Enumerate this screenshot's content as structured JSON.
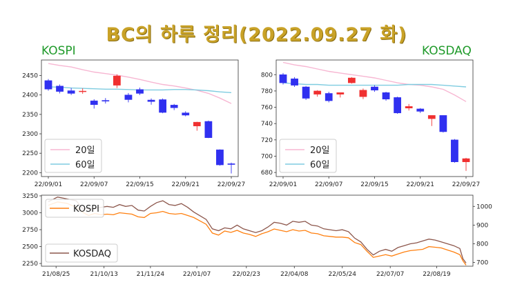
{
  "title": "BC의 하루 정리(2022.09.27 화)",
  "labels": {
    "kospi": "KOSPI",
    "kosdaq": "KOSDAQ"
  },
  "colors": {
    "up": "#f03030",
    "down": "#3030f0",
    "ma20": "#f7b6d2",
    "ma60": "#7ecce0",
    "kospi_line": "#ff7f0e",
    "kosdaq_line": "#8c564b",
    "title": "#c9a227",
    "label": "#1f9a2a"
  },
  "chart_data": [
    {
      "type": "candlestick",
      "name": "KOSPI",
      "ylim": [
        2190,
        2490
      ],
      "yticks": [
        2200,
        2250,
        2300,
        2350,
        2400,
        2450
      ],
      "xtick_labels": [
        "22/09/01",
        "22/09/07",
        "22/09/15",
        "22/09/21",
        "22/09/27"
      ],
      "xtick_index": [
        0,
        4,
        8,
        12,
        16
      ],
      "legend": [
        "20일",
        "60일"
      ],
      "legend_position": "lower-left",
      "candles": [
        [
          2437,
          2441,
          2411,
          2415
        ],
        [
          2423,
          2427,
          2404,
          2409
        ],
        [
          2411,
          2418,
          2400,
          2404
        ],
        [
          2409,
          2417,
          2403,
          2410
        ],
        [
          2385,
          2389,
          2365,
          2375
        ],
        [
          2386,
          2392,
          2378,
          2384
        ],
        [
          2425,
          2453,
          2418,
          2449
        ],
        [
          2400,
          2405,
          2381,
          2388
        ],
        [
          2414,
          2419,
          2400,
          2404
        ],
        [
          2387,
          2391,
          2375,
          2383
        ],
        [
          2388,
          2391,
          2353,
          2355
        ],
        [
          2374,
          2377,
          2361,
          2367
        ],
        [
          2354,
          2358,
          2345,
          2348
        ],
        [
          2320,
          2331,
          2308,
          2330
        ],
        [
          2332,
          2334,
          2289,
          2290
        ],
        [
          2259,
          2260,
          2218,
          2220
        ],
        [
          2223,
          2226,
          2198,
          2221
        ]
      ],
      "ma20": [
        2481,
        2476,
        2472,
        2465,
        2459,
        2455,
        2451,
        2446,
        2440,
        2433,
        2427,
        2423,
        2418,
        2412,
        2404,
        2392,
        2378
      ],
      "ma60": [
        2421,
        2420,
        2418,
        2417,
        2416,
        2415,
        2415,
        2414,
        2413,
        2413,
        2413,
        2414,
        2414,
        2413,
        2411,
        2408,
        2406
      ]
    },
    {
      "type": "candlestick",
      "name": "KOSDAQ",
      "ylim": [
        675,
        818
      ],
      "yticks": [
        680,
        700,
        720,
        740,
        760,
        780,
        800
      ],
      "xtick_labels": [
        "22/09/01",
        "22/09/07",
        "22/09/15",
        "22/09/21",
        "22/09/27"
      ],
      "xtick_index": [
        0,
        4,
        8,
        12,
        16
      ],
      "legend": [
        "20일",
        "60일"
      ],
      "legend_position": "lower-left",
      "candles": [
        [
          800,
          802,
          788,
          790
        ],
        [
          795,
          797,
          785,
          787
        ],
        [
          785,
          786,
          769,
          771
        ],
        [
          776,
          781,
          773,
          780
        ],
        [
          777,
          779,
          766,
          768
        ],
        [
          776,
          778,
          772,
          778
        ],
        [
          790,
          797,
          789,
          796
        ],
        [
          773,
          783,
          770,
          781
        ],
        [
          785,
          787,
          779,
          781
        ],
        [
          778,
          779,
          768,
          770
        ],
        [
          772,
          773,
          752,
          753
        ],
        [
          759,
          764,
          756,
          761
        ],
        [
          758,
          759,
          753,
          755
        ],
        [
          746,
          750,
          737,
          750
        ],
        [
          750,
          750,
          729,
          730
        ],
        [
          720,
          721,
          692,
          693
        ],
        [
          693,
          698,
          682,
          697
        ]
      ],
      "ma20": [
        815,
        812,
        810,
        807,
        804,
        802,
        800,
        798,
        796,
        793,
        790,
        788,
        787,
        785,
        782,
        775,
        767
      ],
      "ma60": [
        790,
        789,
        788,
        788,
        787,
        787,
        787,
        787,
        787,
        787,
        787,
        788,
        788,
        788,
        787,
        786,
        785
      ]
    },
    {
      "type": "line",
      "name": "KOSPI / KOSDAQ",
      "left_ylim": [
        2210,
        3260
      ],
      "left_yticks": [
        2250,
        2500,
        2750,
        3000,
        3250
      ],
      "right_ylim": [
        680,
        1060
      ],
      "right_yticks": [
        700,
        800,
        900,
        1000
      ],
      "xlim": [
        0,
        270
      ],
      "xtick_labels": [
        "21/08/25",
        "21/10/13",
        "21/11/24",
        "22/01/07",
        "22/02/23",
        "22/04/08",
        "22/05/24",
        "22/07/07",
        "22/08/19"
      ],
      "xtick_positions": [
        5,
        36,
        66,
        96,
        128,
        159,
        190,
        221,
        251
      ],
      "legend_kospi": "KOSPI",
      "legend_kosdaq": "KOSDAQ",
      "kospi": [
        [
          0,
          3110
        ],
        [
          6,
          3160
        ],
        [
          12,
          3140
        ],
        [
          18,
          3080
        ],
        [
          22,
          3010
        ],
        [
          26,
          2960
        ],
        [
          30,
          2990
        ],
        [
          34,
          2970
        ],
        [
          38,
          2980
        ],
        [
          42,
          2970
        ],
        [
          46,
          3000
        ],
        [
          50,
          2990
        ],
        [
          54,
          2980
        ],
        [
          58,
          2940
        ],
        [
          62,
          2930
        ],
        [
          66,
          2990
        ],
        [
          70,
          3000
        ],
        [
          74,
          3020
        ],
        [
          78,
          2990
        ],
        [
          82,
          2980
        ],
        [
          86,
          2990
        ],
        [
          90,
          2960
        ],
        [
          94,
          2930
        ],
        [
          98,
          2880
        ],
        [
          102,
          2830
        ],
        [
          106,
          2700
        ],
        [
          110,
          2670
        ],
        [
          114,
          2730
        ],
        [
          118,
          2710
        ],
        [
          122,
          2740
        ],
        [
          126,
          2700
        ],
        [
          130,
          2680
        ],
        [
          134,
          2650
        ],
        [
          138,
          2690
        ],
        [
          142,
          2720
        ],
        [
          146,
          2760
        ],
        [
          150,
          2740
        ],
        [
          154,
          2720
        ],
        [
          158,
          2750
        ],
        [
          162,
          2730
        ],
        [
          166,
          2740
        ],
        [
          170,
          2700
        ],
        [
          174,
          2690
        ],
        [
          178,
          2660
        ],
        [
          182,
          2650
        ],
        [
          186,
          2640
        ],
        [
          190,
          2640
        ],
        [
          194,
          2630
        ],
        [
          198,
          2560
        ],
        [
          202,
          2530
        ],
        [
          206,
          2430
        ],
        [
          210,
          2340
        ],
        [
          214,
          2360
        ],
        [
          218,
          2380
        ],
        [
          222,
          2360
        ],
        [
          226,
          2390
        ],
        [
          230,
          2420
        ],
        [
          234,
          2440
        ],
        [
          238,
          2450
        ],
        [
          242,
          2460
        ],
        [
          246,
          2500
        ],
        [
          250,
          2490
        ],
        [
          254,
          2480
        ],
        [
          258,
          2450
        ],
        [
          262,
          2420
        ],
        [
          266,
          2380
        ],
        [
          268,
          2290
        ],
        [
          270,
          2225
        ]
      ],
      "kosdaq": [
        [
          0,
          1025
        ],
        [
          6,
          1050
        ],
        [
          12,
          1040
        ],
        [
          18,
          1030
        ],
        [
          22,
          990
        ],
        [
          26,
          985
        ],
        [
          30,
          990
        ],
        [
          34,
          995
        ],
        [
          38,
          1000
        ],
        [
          42,
          995
        ],
        [
          46,
          1010
        ],
        [
          50,
          1000
        ],
        [
          54,
          1005
        ],
        [
          58,
          980
        ],
        [
          62,
          975
        ],
        [
          66,
          1000
        ],
        [
          70,
          1020
        ],
        [
          74,
          1030
        ],
        [
          78,
          1010
        ],
        [
          82,
          1005
        ],
        [
          86,
          1015
        ],
        [
          90,
          995
        ],
        [
          94,
          970
        ],
        [
          98,
          950
        ],
        [
          102,
          930
        ],
        [
          106,
          880
        ],
        [
          110,
          870
        ],
        [
          114,
          885
        ],
        [
          118,
          880
        ],
        [
          122,
          900
        ],
        [
          126,
          880
        ],
        [
          130,
          870
        ],
        [
          134,
          860
        ],
        [
          138,
          870
        ],
        [
          142,
          890
        ],
        [
          146,
          915
        ],
        [
          150,
          910
        ],
        [
          154,
          900
        ],
        [
          158,
          920
        ],
        [
          162,
          915
        ],
        [
          166,
          920
        ],
        [
          170,
          900
        ],
        [
          174,
          895
        ],
        [
          178,
          880
        ],
        [
          182,
          875
        ],
        [
          186,
          870
        ],
        [
          190,
          875
        ],
        [
          194,
          865
        ],
        [
          198,
          830
        ],
        [
          202,
          810
        ],
        [
          206,
          770
        ],
        [
          210,
          740
        ],
        [
          214,
          760
        ],
        [
          218,
          770
        ],
        [
          222,
          760
        ],
        [
          226,
          780
        ],
        [
          230,
          790
        ],
        [
          234,
          800
        ],
        [
          238,
          805
        ],
        [
          242,
          815
        ],
        [
          246,
          825
        ],
        [
          250,
          820
        ],
        [
          254,
          810
        ],
        [
          258,
          800
        ],
        [
          262,
          790
        ],
        [
          266,
          775
        ],
        [
          268,
          720
        ],
        [
          270,
          697
        ]
      ]
    }
  ]
}
